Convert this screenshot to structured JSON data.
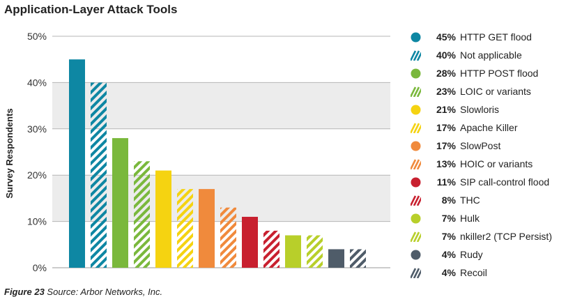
{
  "title": "Application-Layer Attack Tools",
  "caption": {
    "figure": "Figure 23",
    "source": "Source: Arbor Networks, Inc."
  },
  "chart_data": {
    "type": "bar",
    "ylabel": "Survey Respondents",
    "ylim": [
      0,
      50
    ],
    "yticks": [
      "0%",
      "10%",
      "20%",
      "30%",
      "40%",
      "50%"
    ],
    "grid": true,
    "legend_position": "right",
    "categories": [
      "HTTP GET flood",
      "Not applicable",
      "HTTP POST flood",
      "LOIC or variants",
      "Slowloris",
      "Apache Killer",
      "SlowPost",
      "HOIC or variants",
      "SIP call-control flood",
      "THC",
      "Hulk",
      "nkiller2 (TCP Persist)",
      "Rudy",
      "Recoil"
    ],
    "values": [
      45,
      40,
      28,
      23,
      21,
      17,
      17,
      13,
      11,
      8,
      7,
      7,
      4,
      4
    ],
    "labels": [
      "45%",
      "40%",
      "28%",
      "23%",
      "21%",
      "17%",
      "17%",
      "13%",
      "11%",
      "8%",
      "7%",
      "7%",
      "4%",
      "4%"
    ],
    "colors": [
      "#0e87a3",
      "#0e87a3",
      "#7ab83c",
      "#7ab83c",
      "#f5d311",
      "#f5d311",
      "#f08a3c",
      "#f08a3c",
      "#c8202f",
      "#c8202f",
      "#b8cf2a",
      "#b8cf2a",
      "#4f5c69",
      "#4f5c69"
    ],
    "hatched": [
      false,
      true,
      false,
      true,
      false,
      true,
      false,
      true,
      false,
      true,
      false,
      true,
      false,
      true
    ]
  }
}
